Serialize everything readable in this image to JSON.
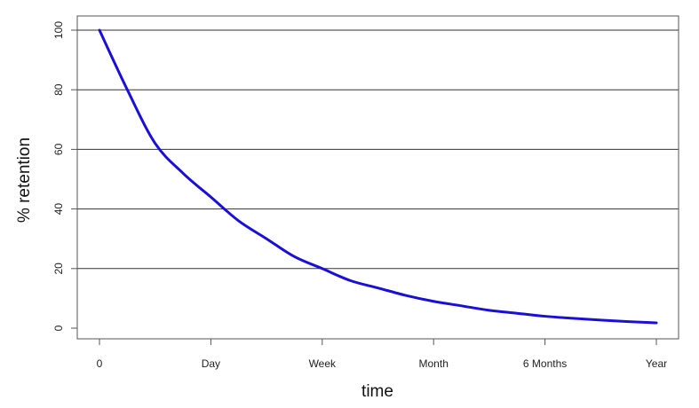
{
  "chart_data": {
    "type": "line",
    "title": "",
    "xlabel": "time",
    "ylabel": "% retention",
    "x_categories": [
      "0",
      "Day",
      "Week",
      "Month",
      "6 Months",
      "Year"
    ],
    "x_tick_values": [
      0,
      1,
      2,
      3,
      4,
      5
    ],
    "yticks": [
      0,
      20,
      40,
      60,
      80,
      100
    ],
    "ylim": [
      0,
      100
    ],
    "xlim": [
      0,
      5
    ],
    "grid": "horizontal",
    "legend": "none",
    "series": [
      {
        "color": "#1a0fd6",
        "x": [
          0,
          0.25,
          0.5,
          0.75,
          1,
          1.25,
          1.5,
          1.75,
          2,
          2.25,
          2.5,
          2.75,
          3,
          3.25,
          3.5,
          3.75,
          4,
          4.25,
          4.5,
          4.75,
          5
        ],
        "y": [
          100,
          80,
          62,
          52,
          44,
          36,
          30,
          24,
          20,
          16,
          13.5,
          11,
          9,
          7.5,
          6,
          5,
          4,
          3.3,
          2.7,
          2.2,
          1.8
        ]
      }
    ]
  }
}
